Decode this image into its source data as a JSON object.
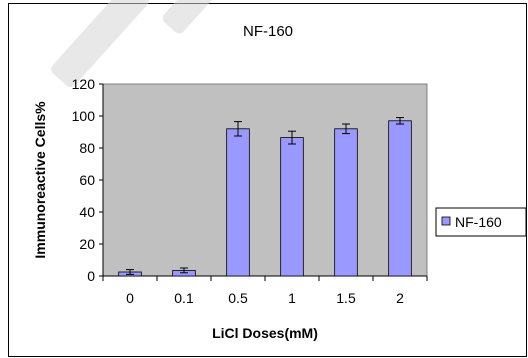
{
  "chart_data": {
    "type": "bar",
    "title": "NF-160",
    "xlabel": "LiCl Doses(mM)",
    "ylabel": "Immunoreactive Cells%",
    "categories": [
      "0",
      "0.1",
      "0.5",
      "1",
      "1.5",
      "2"
    ],
    "series": [
      {
        "name": "NF-160",
        "values": [
          2.5,
          3.5,
          92,
          86.5,
          92,
          97
        ],
        "errors": [
          1.5,
          1.5,
          4.5,
          4,
          3,
          2
        ],
        "color": "#9999ff"
      }
    ],
    "ylim": [
      0,
      120
    ],
    "yticks": [
      "0",
      "20",
      "40",
      "60",
      "80",
      "100",
      "120"
    ],
    "plot_background": "#c0c0c0",
    "grid": false,
    "legend_position": "right"
  }
}
